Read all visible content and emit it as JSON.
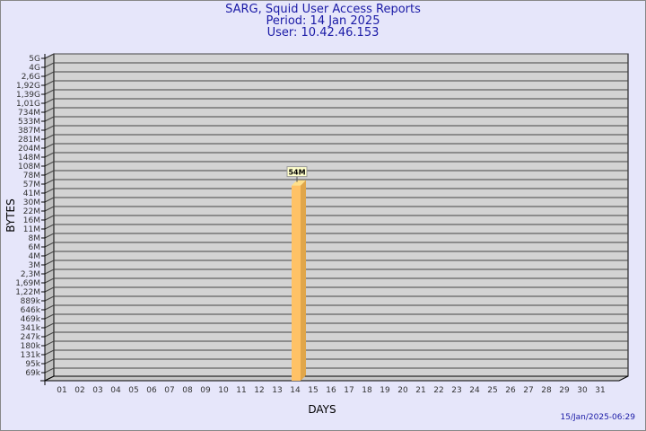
{
  "header": {
    "title": "SARG, Squid User Access Reports",
    "period": "Period: 14 Jan 2025",
    "user": "User: 10.42.46.153"
  },
  "footer": {
    "timestamp": "15/Jan/2025-06:29"
  },
  "colors": {
    "background": "#e6e6fa",
    "plot": "#d3d3d3",
    "bar": "#ffc266",
    "title": "#1a1aa6"
  },
  "chart_data": {
    "type": "bar",
    "xlabel": "DAYS",
    "ylabel": "BYTES",
    "yscale": "log",
    "grid": true,
    "y_ticks": [
      "5G",
      "4G",
      "2,6G",
      "1,92G",
      "1,39G",
      "1,01G",
      "734M",
      "533M",
      "387M",
      "281M",
      "204M",
      "148M",
      "108M",
      "78M",
      "57M",
      "41M",
      "30M",
      "22M",
      "16M",
      "11M",
      "8M",
      "6M",
      "4M",
      "3M",
      "2,3M",
      "1,69M",
      "1,22M",
      "889k",
      "646k",
      "469k",
      "341k",
      "247k",
      "180k",
      "131k",
      "95k",
      "69k"
    ],
    "categories": [
      "01",
      "02",
      "03",
      "04",
      "05",
      "06",
      "07",
      "08",
      "09",
      "10",
      "11",
      "12",
      "13",
      "14",
      "15",
      "16",
      "17",
      "18",
      "19",
      "20",
      "21",
      "22",
      "23",
      "24",
      "25",
      "26",
      "27",
      "28",
      "29",
      "30",
      "31"
    ],
    "bars": [
      {
        "day": "14",
        "value": "54M",
        "bytes": 54000000
      }
    ]
  }
}
